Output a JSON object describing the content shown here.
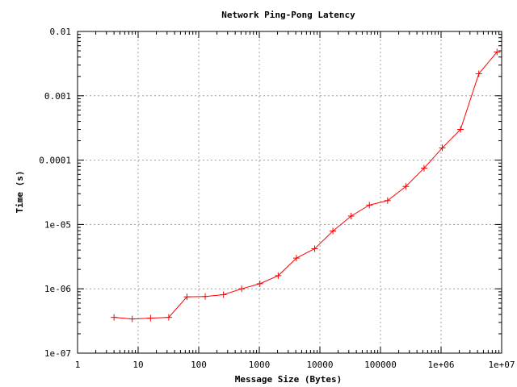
{
  "chart_data": {
    "type": "line",
    "title": "Network Ping-Pong Latency",
    "xlabel": "Message Size (Bytes)",
    "ylabel": "Time (s)",
    "x_scale": "log",
    "y_scale": "log",
    "xlim": [
      1,
      10000000
    ],
    "ylim": [
      1e-07,
      0.01
    ],
    "grid": true,
    "x_ticks": [
      {
        "value": 1,
        "label": "1"
      },
      {
        "value": 10,
        "label": "10"
      },
      {
        "value": 100,
        "label": "100"
      },
      {
        "value": 1000,
        "label": "1000"
      },
      {
        "value": 10000,
        "label": "10000"
      },
      {
        "value": 100000,
        "label": "100000"
      },
      {
        "value": 1000000,
        "label": "1e+06"
      },
      {
        "value": 10000000,
        "label": "1e+07"
      }
    ],
    "y_ticks": [
      {
        "value": 1e-07,
        "label": "1e-07"
      },
      {
        "value": 1e-06,
        "label": "1e-06"
      },
      {
        "value": 1e-05,
        "label": "1e-05"
      },
      {
        "value": 0.0001,
        "label": "0.0001"
      },
      {
        "value": 0.001,
        "label": "0.001"
      },
      {
        "value": 0.01,
        "label": "0.01"
      }
    ],
    "series": [
      {
        "color": "#ff0000",
        "marker": "plus",
        "x": [
          4,
          8,
          16,
          32,
          64,
          128,
          256,
          512,
          1024,
          2048,
          4096,
          8192,
          16384,
          32768,
          65536,
          131072,
          262144,
          524288,
          1048576,
          2097152,
          4194304,
          8388608
        ],
        "y": [
          3.6e-07,
          3.4e-07,
          3.5e-07,
          3.6e-07,
          7.5e-07,
          7.6e-07,
          8.1e-07,
          1e-06,
          1.2e-06,
          1.6e-06,
          3e-06,
          4.2e-06,
          7.9e-06,
          1.35e-05,
          2e-05,
          2.35e-05,
          3.9e-05,
          7.5e-05,
          0.000155,
          0.0003,
          0.0022,
          0.0048
        ]
      }
    ]
  }
}
